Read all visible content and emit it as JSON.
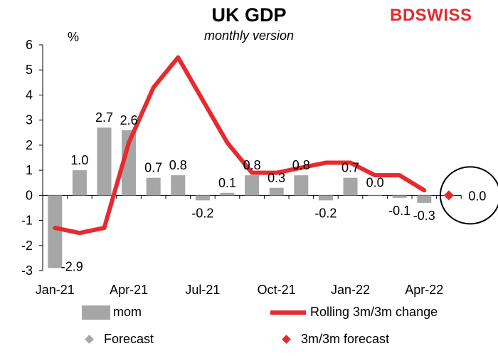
{
  "logo_text": {
    "part1": "BD",
    "part2": "SWISS"
  },
  "chart_data": {
    "type": "bar+line",
    "title": "UK GDP",
    "subtitle": "monthly version",
    "ylabel": "%",
    "ylim": [
      -3,
      6
    ],
    "yticks": [
      "6",
      "5",
      "4",
      "3",
      "2",
      "1",
      "0",
      "-1",
      "-2",
      "-3"
    ],
    "x_tick_labels": [
      "Jan-21",
      "Apr-21",
      "Jul-21",
      "Oct-21",
      "Jan-22",
      "Apr-22"
    ],
    "grid": false,
    "legend_position": "bottom",
    "months": [
      "Jan-21",
      "Feb-21",
      "Mar-21",
      "Apr-21",
      "May-21",
      "Jun-21",
      "Jul-21",
      "Aug-21",
      "Sep-21",
      "Oct-21",
      "Nov-21",
      "Dec-21",
      "Jan-22",
      "Feb-22",
      "Mar-22",
      "Apr-22",
      "May-22"
    ],
    "series": [
      {
        "name": "mom",
        "type": "bar",
        "color": "#a6a6a6",
        "values": [
          -2.9,
          1.0,
          2.7,
          2.6,
          0.7,
          0.8,
          -0.2,
          0.1,
          0.8,
          0.3,
          0.8,
          -0.2,
          0.7,
          0.0,
          -0.1,
          -0.3,
          null
        ],
        "labels": [
          "-2.9",
          "1.0",
          "2.7",
          "2.6",
          "0.7",
          "0.8",
          "-0.2",
          "0.1",
          "0.8",
          "0.3",
          "0.8",
          "-0.2",
          "0.7",
          "0.0",
          "-0.1",
          "-0.3",
          ""
        ]
      },
      {
        "name": "Rolling 3m/3m change",
        "type": "line",
        "color": "#e8292e",
        "values": [
          -1.3,
          -1.5,
          -1.3,
          2.1,
          4.3,
          5.5,
          3.8,
          2.1,
          0.9,
          0.9,
          1.1,
          1.3,
          1.3,
          0.8,
          0.8,
          0.2,
          null
        ]
      },
      {
        "name": "Forecast",
        "type": "scatter",
        "color": "#a6a6a6",
        "values": [
          null,
          null,
          null,
          null,
          null,
          null,
          null,
          null,
          null,
          null,
          null,
          null,
          null,
          null,
          null,
          null,
          null
        ]
      },
      {
        "name": "3m/3m forecast",
        "type": "scatter",
        "color": "#e8292e",
        "values": [
          null,
          null,
          null,
          null,
          null,
          null,
          null,
          null,
          null,
          null,
          null,
          null,
          null,
          null,
          null,
          null,
          0.0
        ],
        "labels": [
          "",
          "",
          "",
          "",
          "",
          "",
          "",
          "",
          "",
          "",
          "",
          "",
          "",
          "",
          "",
          "",
          "0.0"
        ]
      }
    ],
    "annotation": "circle around 3m/3m forecast"
  }
}
